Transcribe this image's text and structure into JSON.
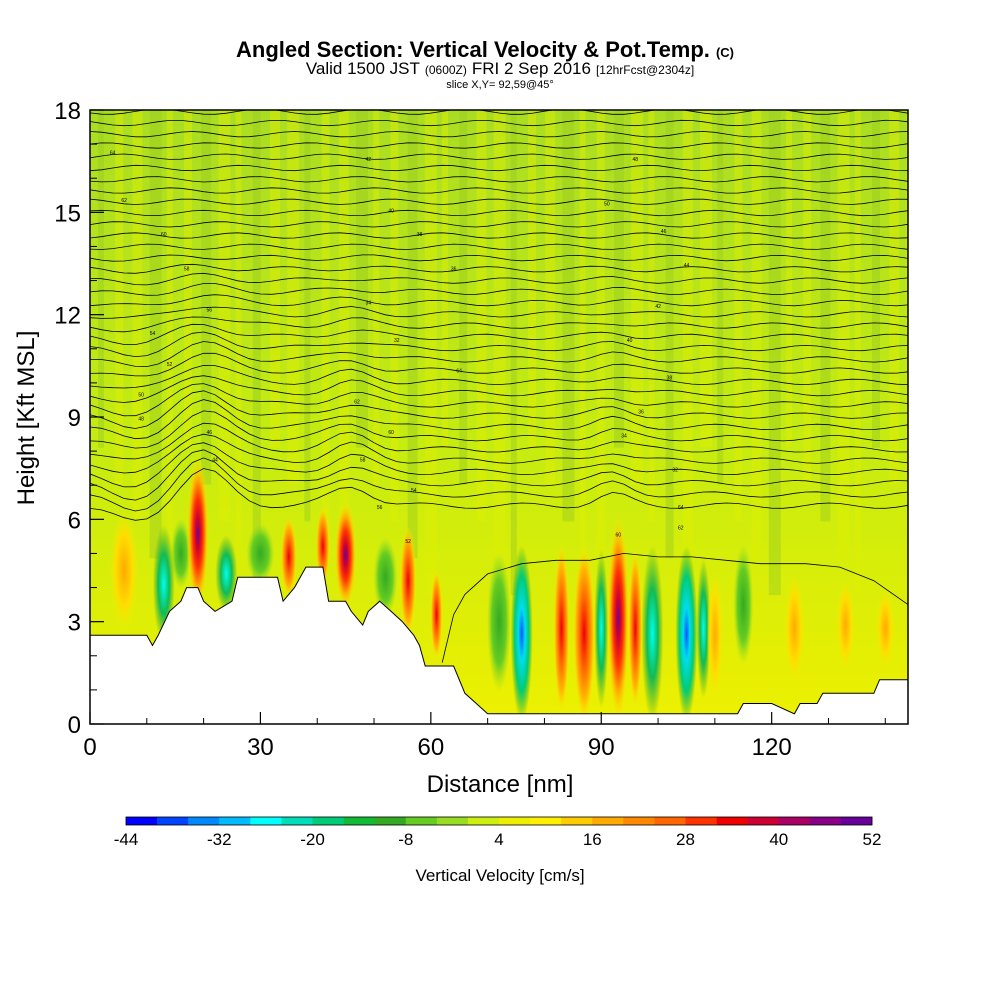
{
  "chart_data": {
    "type": "heatmap",
    "title_main": "Angled Section: Vertical Velocity & Pot.Temp.",
    "title_unit": "(C)",
    "subtitle_a": "Valid 1500 JST",
    "subtitle_b": "(0600Z)",
    "subtitle_c": "FRI 2 Sep 2016",
    "subtitle_d": "[12hrFcst@2304z]",
    "slice_label": "slice X,Y= 92,59@45°",
    "xlabel": "Distance [nm]",
    "ylabel": "Height [Kft MSL]",
    "xlim": [
      0,
      144
    ],
    "ylim": [
      0,
      18
    ],
    "xticks": [
      "0",
      "30",
      "60",
      "90",
      "120"
    ],
    "xtick_values": [
      0,
      30,
      60,
      90,
      120
    ],
    "yticks": [
      "0",
      "3",
      "6",
      "9",
      "12",
      "15",
      "18"
    ],
    "ytick_values": [
      0,
      3,
      6,
      9,
      12,
      15,
      18
    ],
    "colorbar": {
      "label": "Vertical Velocity [cm/s]",
      "tick_labels": [
        "-44",
        "-32",
        "-20",
        "-8",
        "4",
        "16",
        "28",
        "40",
        "52"
      ],
      "range": [
        -44,
        52
      ],
      "colors": [
        "#0000ff",
        "#0044ff",
        "#0088ff",
        "#00bbff",
        "#00ffff",
        "#00ddbb",
        "#00cc77",
        "#11bb33",
        "#33aa22",
        "#66cc22",
        "#99dd22",
        "#ccee11",
        "#eeee00",
        "#ffee00",
        "#ffcc00",
        "#ffaa00",
        "#ff8800",
        "#ff6600",
        "#ff3300",
        "#ee0000",
        "#cc0033",
        "#aa0066",
        "#880088",
        "#660099"
      ]
    },
    "terrain_profile": [
      [
        0,
        2.6
      ],
      [
        5,
        2.6
      ],
      [
        10,
        2.6
      ],
      [
        11,
        2.3
      ],
      [
        12,
        2.6
      ],
      [
        14,
        3.3
      ],
      [
        16,
        3.6
      ],
      [
        17,
        4.0
      ],
      [
        19,
        4.0
      ],
      [
        20,
        3.6
      ],
      [
        22,
        3.3
      ],
      [
        25,
        3.6
      ],
      [
        26,
        4.3
      ],
      [
        33,
        4.3
      ],
      [
        34,
        3.6
      ],
      [
        36,
        4.0
      ],
      [
        38,
        4.6
      ],
      [
        41,
        4.6
      ],
      [
        42,
        3.6
      ],
      [
        45,
        3.6
      ],
      [
        46,
        3.3
      ],
      [
        48,
        2.9
      ],
      [
        49,
        3.3
      ],
      [
        51,
        3.6
      ],
      [
        53,
        3.3
      ],
      [
        55,
        3.0
      ],
      [
        57,
        2.6
      ],
      [
        58,
        2.3
      ],
      [
        59,
        1.7
      ],
      [
        64,
        1.7
      ],
      [
        66,
        0.9
      ],
      [
        68,
        0.6
      ],
      [
        70,
        0.3
      ],
      [
        114,
        0.3
      ],
      [
        115,
        0.6
      ],
      [
        120,
        0.6
      ],
      [
        124,
        0.3
      ],
      [
        125,
        0.6
      ],
      [
        128,
        0.6
      ],
      [
        129,
        0.9
      ],
      [
        138,
        0.9
      ],
      [
        139,
        1.3
      ],
      [
        144,
        1.3
      ]
    ],
    "isentrope_labels": [
      "64",
      "62",
      "60",
      "58",
      "56",
      "54",
      "52",
      "50",
      "48",
      "46",
      "44",
      "42",
      "40",
      "38",
      "36",
      "34",
      "32"
    ],
    "velocity_features": [
      {
        "x": 19,
        "y_top": 7.6,
        "y_bottom": 3.6,
        "value": 44
      },
      {
        "x": 45,
        "y_top": 6.3,
        "y_bottom": 3.6,
        "value": 42
      },
      {
        "x": 93,
        "y_top": 5.9,
        "y_bottom": 0.3,
        "value": 40
      },
      {
        "x": 87,
        "y_top": 5.0,
        "y_bottom": 0.3,
        "value": 34
      },
      {
        "x": 76,
        "y_top": 5.0,
        "y_bottom": 0.3,
        "value": -30
      },
      {
        "x": 105,
        "y_top": 5.0,
        "y_bottom": 0.3,
        "value": -36
      },
      {
        "x": 99,
        "y_top": 5.0,
        "y_bottom": 0.3,
        "value": -26
      },
      {
        "x": 13,
        "y_top": 5.6,
        "y_bottom": 2.6,
        "value": -24
      },
      {
        "x": 24,
        "y_top": 5.3,
        "y_bottom": 3.5,
        "value": -22
      }
    ]
  }
}
